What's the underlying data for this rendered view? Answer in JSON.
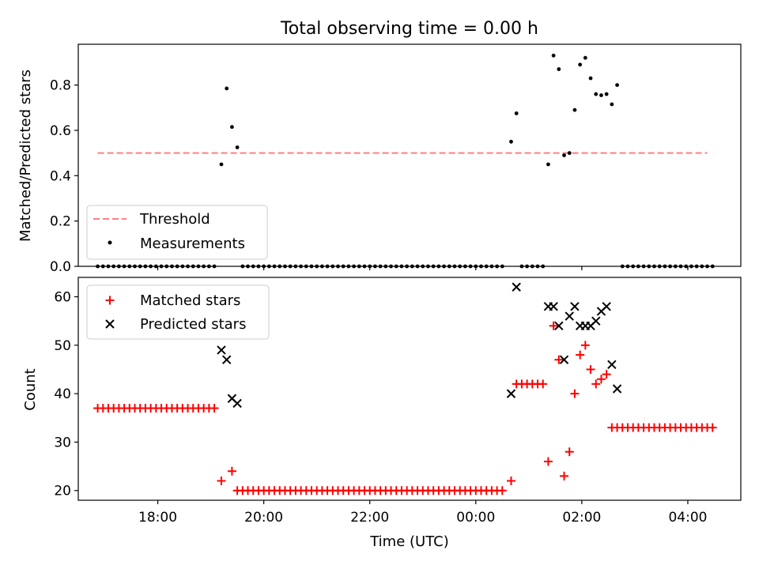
{
  "chart_data": [
    {
      "type": "scatter",
      "title": "Total observing time = 0.00 h",
      "xlabel": "",
      "ylabel": "Matched/Predicted stars",
      "ylim": [
        0,
        0.98
      ],
      "yticks": [
        0.0,
        0.2,
        0.4,
        0.6,
        0.8
      ],
      "ytick_labels": [
        "0.0",
        "0.2",
        "0.4",
        "0.6",
        "0.8"
      ],
      "legend_position": "lower-left",
      "legend": {
        "threshold": "Threshold",
        "measurements": "Measurements"
      },
      "threshold": {
        "name": "Threshold",
        "value": 0.5,
        "x_range": [
          "16:52",
          "04:22"
        ],
        "color": "#ff7f7f",
        "style": "dashed"
      },
      "measurements": {
        "name": "Measurements",
        "color": "#000000",
        "nonzero_points": [
          {
            "x": "19:12",
            "y": 0.45
          },
          {
            "x": "19:18",
            "y": 0.785
          },
          {
            "x": "19:24",
            "y": 0.615
          },
          {
            "x": "19:30",
            "y": 0.525
          },
          {
            "x": "00:40",
            "y": 0.55
          },
          {
            "x": "00:46",
            "y": 0.675
          },
          {
            "x": "01:22",
            "y": 0.45
          },
          {
            "x": "01:28",
            "y": 0.93
          },
          {
            "x": "01:34",
            "y": 0.87
          },
          {
            "x": "01:40",
            "y": 0.49
          },
          {
            "x": "01:46",
            "y": 0.5
          },
          {
            "x": "01:52",
            "y": 0.69
          },
          {
            "x": "01:58",
            "y": 0.89
          },
          {
            "x": "02:04",
            "y": 0.92
          },
          {
            "x": "02:10",
            "y": 0.83
          },
          {
            "x": "02:16",
            "y": 0.76
          },
          {
            "x": "02:22",
            "y": 0.755
          },
          {
            "x": "02:28",
            "y": 0.76
          },
          {
            "x": "02:34",
            "y": 0.715
          },
          {
            "x": "02:40",
            "y": 0.8
          }
        ],
        "zero_runs": [
          {
            "from": "16:52",
            "to": "19:06",
            "y": 0.0
          },
          {
            "from": "19:36",
            "to": "00:34",
            "y": 0.0
          },
          {
            "from": "00:52",
            "to": "01:16",
            "y": 0.0
          },
          {
            "from": "02:46",
            "to": "04:28",
            "y": 0.0
          }
        ]
      }
    },
    {
      "type": "scatter",
      "title": "",
      "xlabel": "Time (UTC)",
      "ylabel": "Count",
      "ylim": [
        18,
        64
      ],
      "yticks": [
        20,
        30,
        40,
        50,
        60
      ],
      "ytick_labels": [
        "20",
        "30",
        "40",
        "50",
        "60"
      ],
      "xlim": [
        "16:30",
        "05:00"
      ],
      "xticks": [
        "18:00",
        "20:00",
        "22:00",
        "00:00",
        "02:00",
        "04:00"
      ],
      "legend_position": "top-left",
      "legend": {
        "matched": "Matched stars",
        "predicted": "Predicted stars"
      },
      "series": [
        {
          "name": "Matched stars",
          "marker": "+",
          "color": "#ff0000",
          "points": [
            {
              "x": "19:12",
              "y": 22
            },
            {
              "x": "19:24",
              "y": 24
            },
            {
              "x": "00:40",
              "y": 22
            },
            {
              "x": "01:22",
              "y": 26
            },
            {
              "x": "01:28",
              "y": 54
            },
            {
              "x": "01:34",
              "y": 47
            },
            {
              "x": "01:40",
              "y": 23
            },
            {
              "x": "01:46",
              "y": 28
            },
            {
              "x": "01:52",
              "y": 40
            },
            {
              "x": "01:58",
              "y": 48
            },
            {
              "x": "02:04",
              "y": 50
            },
            {
              "x": "02:10",
              "y": 45
            },
            {
              "x": "02:16",
              "y": 42
            },
            {
              "x": "02:22",
              "y": 43
            },
            {
              "x": "02:28",
              "y": 44
            }
          ],
          "runs": [
            {
              "from": "16:52",
              "to": "19:06",
              "y": 37
            },
            {
              "from": "19:30",
              "to": "00:34",
              "y": 20
            },
            {
              "from": "00:46",
              "to": "01:16",
              "y": 42
            },
            {
              "from": "02:34",
              "to": "04:28",
              "y": 33
            }
          ]
        },
        {
          "name": "Predicted stars",
          "marker": "x",
          "color": "#000000",
          "points": [
            {
              "x": "19:12",
              "y": 49
            },
            {
              "x": "19:18",
              "y": 47
            },
            {
              "x": "19:24",
              "y": 39
            },
            {
              "x": "19:30",
              "y": 38
            },
            {
              "x": "00:40",
              "y": 40
            },
            {
              "x": "00:46",
              "y": 62
            },
            {
              "x": "01:22",
              "y": 58
            },
            {
              "x": "01:28",
              "y": 58
            },
            {
              "x": "01:34",
              "y": 54
            },
            {
              "x": "01:40",
              "y": 47
            },
            {
              "x": "01:46",
              "y": 56
            },
            {
              "x": "01:52",
              "y": 58
            },
            {
              "x": "01:58",
              "y": 54
            },
            {
              "x": "02:04",
              "y": 54
            },
            {
              "x": "02:10",
              "y": 54
            },
            {
              "x": "02:16",
              "y": 55
            },
            {
              "x": "02:22",
              "y": 57
            },
            {
              "x": "02:28",
              "y": 58
            },
            {
              "x": "02:34",
              "y": 46
            },
            {
              "x": "02:40",
              "y": 41
            }
          ]
        }
      ]
    }
  ]
}
